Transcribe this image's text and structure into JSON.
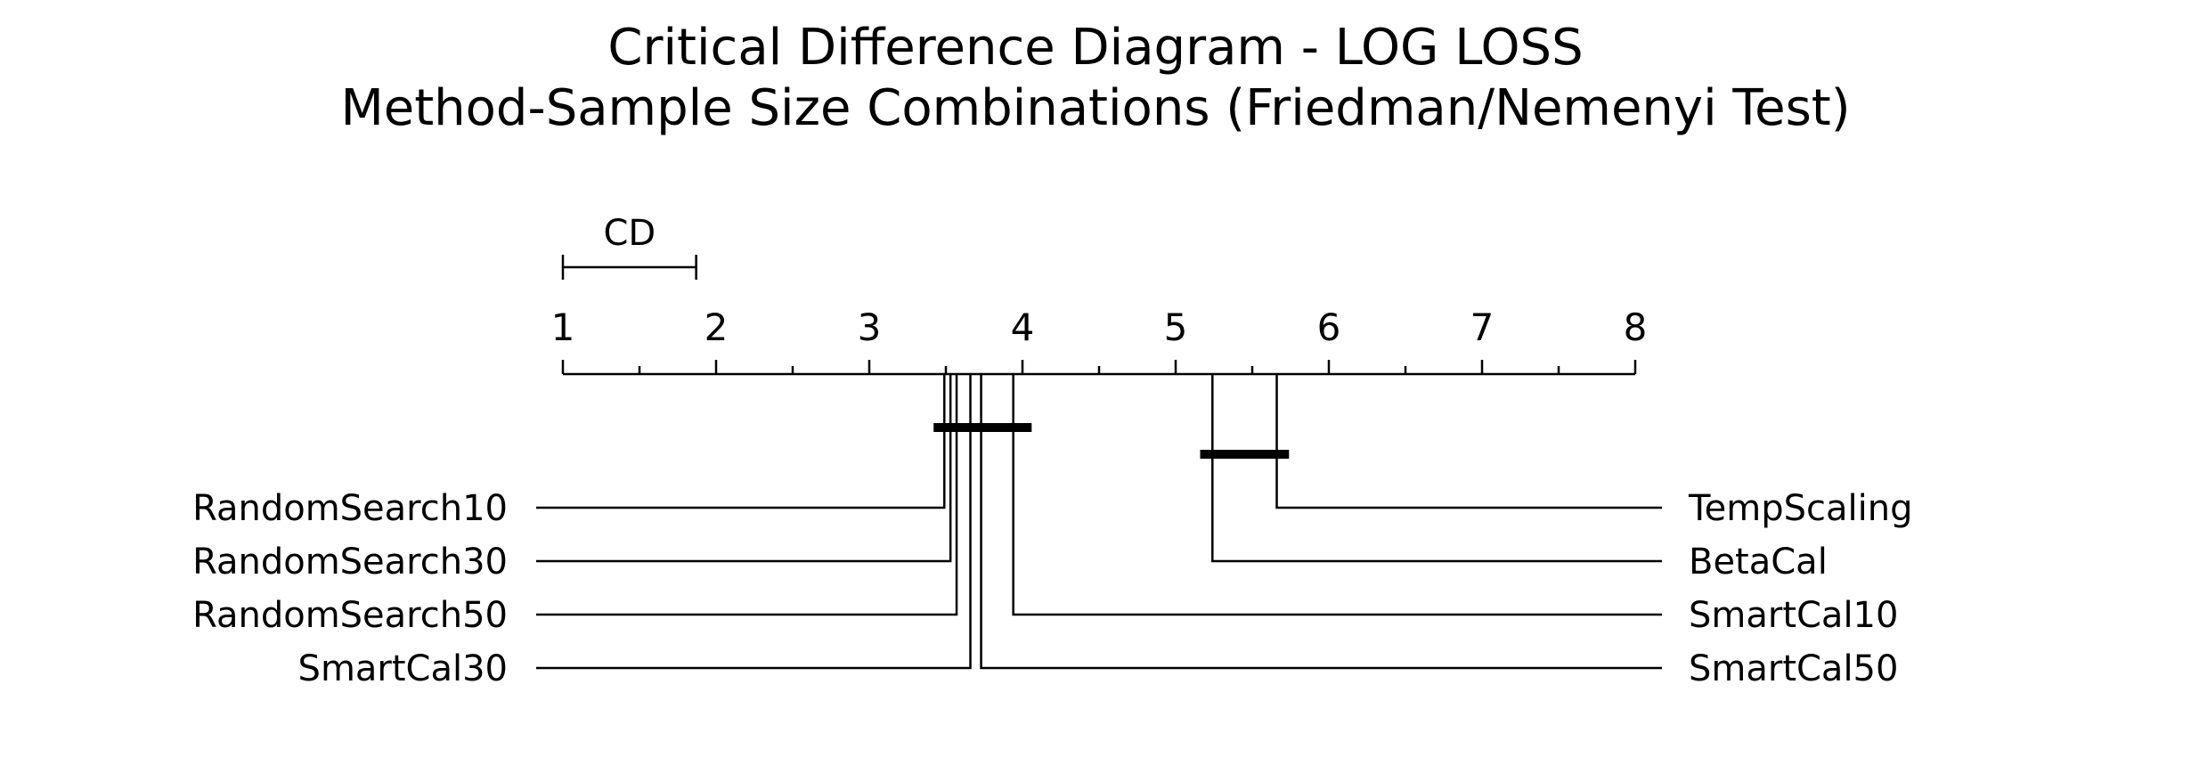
{
  "chart_data": {
    "type": "critical-difference",
    "title": "Critical Difference Diagram - LOG LOSS",
    "subtitle": "Method-Sample Size Combinations (Friedman/Nemenyi Test)",
    "cd_label": "CD",
    "cd": 0.87,
    "axis_range": [
      1,
      8
    ],
    "ticks": [
      1,
      2,
      3,
      4,
      5,
      6,
      7,
      8
    ],
    "minor_ticks": [
      1.5,
      2.5,
      3.5,
      4.5,
      5.5,
      6.5,
      7.5
    ],
    "left_methods": [
      {
        "name": "RandomSearch10",
        "rank": 3.49
      },
      {
        "name": "RandomSearch30",
        "rank": 3.53
      },
      {
        "name": "RandomSearch50",
        "rank": 3.57
      },
      {
        "name": "SmartCal30",
        "rank": 3.66
      }
    ],
    "right_methods": [
      {
        "name": "TempScaling",
        "rank": 5.66
      },
      {
        "name": "BetaCal",
        "rank": 5.24
      },
      {
        "name": "SmartCal10",
        "rank": 3.94
      },
      {
        "name": "SmartCal50",
        "rank": 3.73
      }
    ],
    "cliques": [
      {
        "from": 3.42,
        "to": 4.06
      },
      {
        "from": 5.16,
        "to": 5.74
      }
    ]
  }
}
